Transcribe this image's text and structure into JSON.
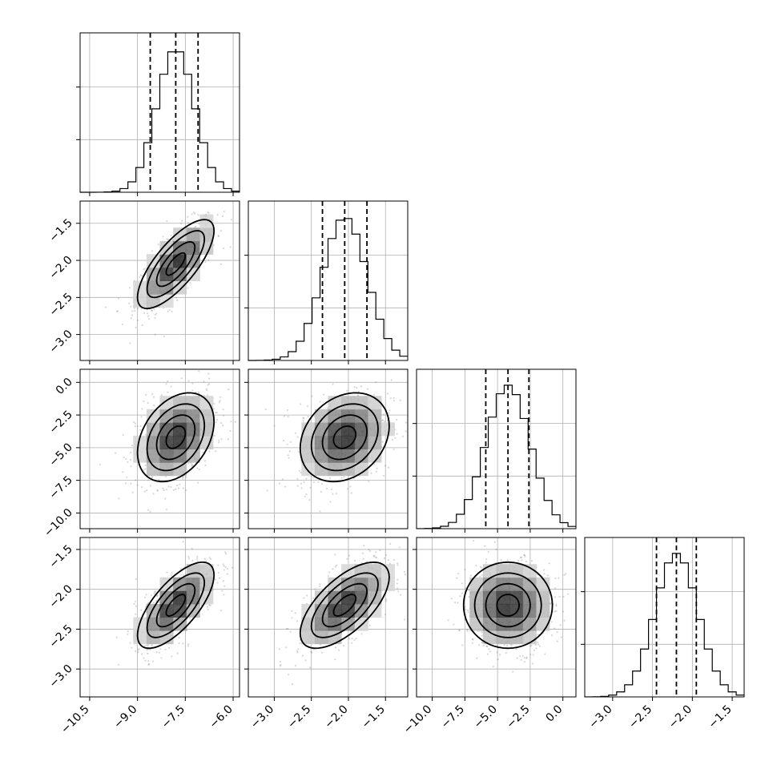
{
  "chart_data": {
    "type": "corner",
    "parameters": [
      {
        "index": 0,
        "mean": -7.8,
        "sd": 0.6,
        "range": [
          -10.8,
          -5.8
        ],
        "ticks": [
          -10.5,
          -9.0,
          -7.5,
          -6.0
        ],
        "tick_labels": [
          "−10.5",
          "−9.0",
          "−7.5",
          "−6.0"
        ],
        "quantiles": [
          -8.6,
          -7.8,
          -7.1
        ]
      },
      {
        "index": 1,
        "mean": -2.05,
        "sd": 0.3,
        "range": [
          -3.35,
          -1.2
        ],
        "ticks": [
          -3.0,
          -2.5,
          -2.0,
          -1.5
        ],
        "tick_labels": [
          "−3.0",
          "−2.5",
          "−2.0",
          "−1.5"
        ],
        "quantiles": [
          -2.35,
          -2.05,
          -1.75
        ]
      },
      {
        "index": 2,
        "mean": -4.2,
        "sd": 1.7,
        "range": [
          -11.2,
          1.0
        ],
        "ticks": [
          -10.0,
          -7.5,
          -5.0,
          -2.5,
          0.0
        ],
        "tick_labels": [
          "−10.0",
          "−7.5",
          "−5.0",
          "−2.5",
          "0.0"
        ],
        "quantiles": [
          -5.9,
          -4.2,
          -2.6
        ]
      },
      {
        "index": 3,
        "mean": -2.2,
        "sd": 0.27,
        "range": [
          -3.35,
          -1.35
        ],
        "ticks": [
          -3.0,
          -2.5,
          -2.0,
          -1.5
        ],
        "tick_labels": [
          "−3.0",
          "−2.5",
          "−2.0",
          "−1.5"
        ],
        "quantiles": [
          -2.45,
          -2.2,
          -1.95
        ]
      }
    ],
    "correlations": {
      "1,0": 0.75,
      "2,0": 0.35,
      "2,1": 0.25,
      "3,0": 0.7,
      "3,1": 0.65,
      "3,2": 0.0
    },
    "histogram": {
      "bins": 20,
      "style": "step"
    },
    "contour_levels": [
      0.5,
      1.0,
      1.5,
      2.0
    ],
    "grid": true,
    "colors": {
      "points": "#7a7a7a",
      "lines": "#000000",
      "grid": "#b0b0b0"
    }
  }
}
